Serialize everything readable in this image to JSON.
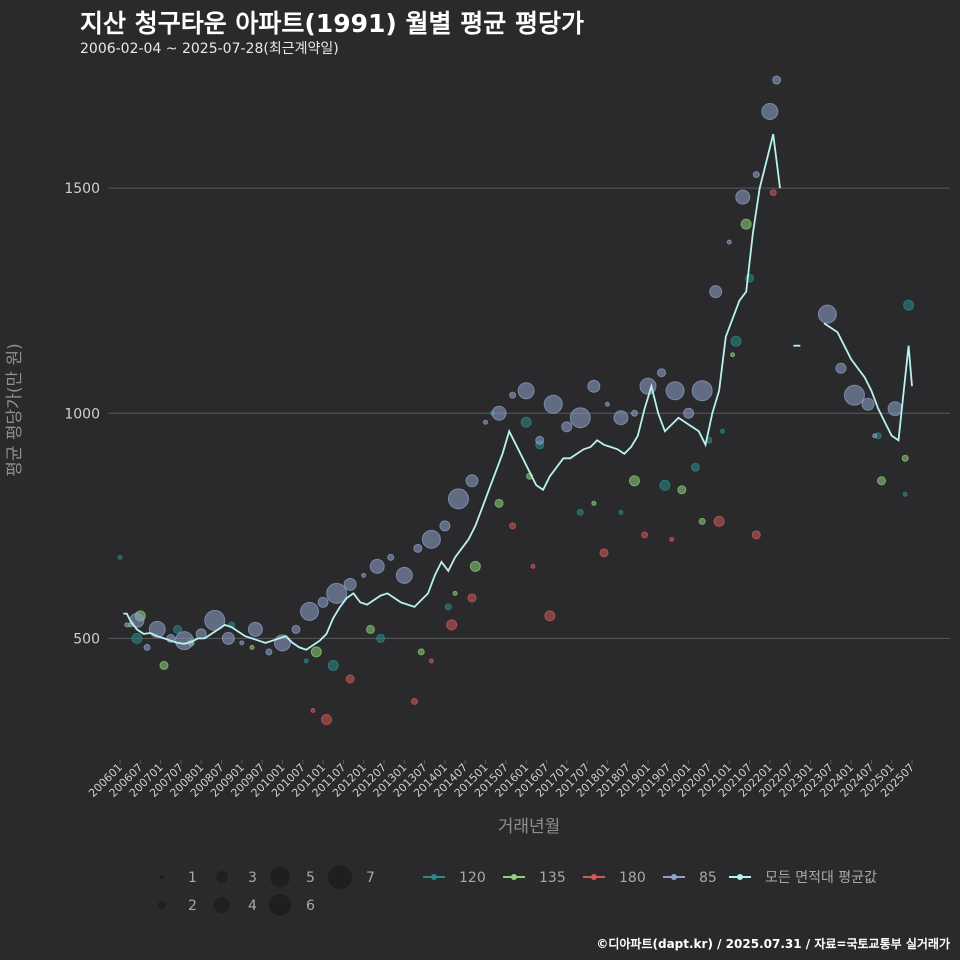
{
  "title": "지산 청구타운 아파트(1991) 월별 평균 평당가",
  "subtitle": "2006-02-04 ~ 2025-07-28(최근계약일)",
  "footer": "©디아파트(dapt.kr) / 2025.07.31 / 자료=국토교통부 실거래가",
  "colors": {
    "background": "#2a2a2c",
    "grid": "#5a5a5c",
    "series_120": "#2a8a8a",
    "series_135": "#8fd07a",
    "series_180": "#d05a5a",
    "series_85": "#8ea3cc",
    "avg_line": "#b8f2ee"
  },
  "chart_data": {
    "type": "line",
    "xlabel": "거래년월",
    "ylabel": "평균 평당가(만 원)",
    "y_ticks": [
      500,
      1000,
      1500
    ],
    "ylim": [
      230,
      1780
    ],
    "x_tick_labels": [
      "200601",
      "200607",
      "200701",
      "200707",
      "200801",
      "200807",
      "200901",
      "200907",
      "201001",
      "201007",
      "201101",
      "201107",
      "201201",
      "201207",
      "201301",
      "201307",
      "201401",
      "201407",
      "201501",
      "201507",
      "201601",
      "201607",
      "201701",
      "201707",
      "201801",
      "201807",
      "201901",
      "201907",
      "202001",
      "202007",
      "202101",
      "202107",
      "202201",
      "202207",
      "202301",
      "202307",
      "202401",
      "202407",
      "202501",
      "202507"
    ],
    "grid": "horizontal",
    "series": [
      {
        "name": "모든 면적대 평균값",
        "points": [
          [
            "2006-02",
            555
          ],
          [
            "2006-03",
            555
          ],
          [
            "2006-04",
            540
          ],
          [
            "2006-06",
            520
          ],
          [
            "2006-08",
            510
          ],
          [
            "2006-10",
            512
          ],
          [
            "2006-12",
            505
          ],
          [
            "2007-02",
            500
          ],
          [
            "2007-04",
            495
          ],
          [
            "2007-06",
            490
          ],
          [
            "2007-08",
            488
          ],
          [
            "2007-10",
            492
          ],
          [
            "2007-12",
            500
          ],
          [
            "2008-02",
            500
          ],
          [
            "2008-04",
            510
          ],
          [
            "2008-06",
            520
          ],
          [
            "2008-08",
            530
          ],
          [
            "2008-10",
            525
          ],
          [
            "2008-12",
            515
          ],
          [
            "2009-02",
            505
          ],
          [
            "2009-04",
            500
          ],
          [
            "2009-06",
            495
          ],
          [
            "2009-08",
            490
          ],
          [
            "2009-10",
            495
          ],
          [
            "2009-12",
            500
          ],
          [
            "2010-02",
            505
          ],
          [
            "2010-04",
            490
          ],
          [
            "2010-06",
            480
          ],
          [
            "2010-08",
            475
          ],
          [
            "2010-10",
            485
          ],
          [
            "2010-12",
            495
          ],
          [
            "2011-02",
            510
          ],
          [
            "2011-04",
            545
          ],
          [
            "2011-06",
            570
          ],
          [
            "2011-08",
            590
          ],
          [
            "2011-10",
            600
          ],
          [
            "2011-12",
            580
          ],
          [
            "2012-02",
            575
          ],
          [
            "2012-04",
            585
          ],
          [
            "2012-06",
            595
          ],
          [
            "2012-08",
            600
          ],
          [
            "2012-10",
            590
          ],
          [
            "2012-12",
            580
          ],
          [
            "2013-02",
            575
          ],
          [
            "2013-04",
            570
          ],
          [
            "2013-06",
            585
          ],
          [
            "2013-08",
            600
          ],
          [
            "2013-10",
            640
          ],
          [
            "2013-12",
            670
          ],
          [
            "2014-02",
            650
          ],
          [
            "2014-04",
            680
          ],
          [
            "2014-06",
            700
          ],
          [
            "2014-08",
            720
          ],
          [
            "2014-10",
            750
          ],
          [
            "2014-12",
            790
          ],
          [
            "2015-02",
            830
          ],
          [
            "2015-04",
            870
          ],
          [
            "2015-06",
            910
          ],
          [
            "2015-08",
            960
          ],
          [
            "2015-10",
            930
          ],
          [
            "2015-12",
            900
          ],
          [
            "2016-02",
            870
          ],
          [
            "2016-04",
            840
          ],
          [
            "2016-06",
            830
          ],
          [
            "2016-08",
            860
          ],
          [
            "2016-10",
            880
          ],
          [
            "2016-12",
            900
          ],
          [
            "2017-02",
            900
          ],
          [
            "2017-04",
            910
          ],
          [
            "2017-06",
            920
          ],
          [
            "2017-08",
            925
          ],
          [
            "2017-10",
            940
          ],
          [
            "2017-12",
            930
          ],
          [
            "2018-02",
            925
          ],
          [
            "2018-04",
            920
          ],
          [
            "2018-06",
            910
          ],
          [
            "2018-08",
            925
          ],
          [
            "2018-10",
            950
          ],
          [
            "2018-12",
            1010
          ],
          [
            "2019-02",
            1060
          ],
          [
            "2019-04",
            1000
          ],
          [
            "2019-06",
            960
          ],
          [
            "2019-08",
            975
          ],
          [
            "2019-10",
            990
          ],
          [
            "2019-12",
            980
          ],
          [
            "2020-02",
            970
          ],
          [
            "2020-04",
            960
          ],
          [
            "2020-06",
            930
          ],
          [
            "2020-08",
            1000
          ],
          [
            "2020-10",
            1050
          ],
          [
            "2020-12",
            1170
          ],
          [
            "2021-02",
            1210
          ],
          [
            "2021-04",
            1250
          ],
          [
            "2021-06",
            1270
          ],
          [
            "2021-08",
            1400
          ],
          [
            "2021-10",
            1500
          ],
          [
            "2021-12",
            1560
          ],
          [
            "2022-02",
            1620
          ],
          [
            "2022-04",
            1500
          ],
          [
            "2022-08",
            1150
          ],
          [
            "2022-10",
            1150
          ],
          [
            "2023-05",
            1200
          ],
          [
            "2023-07",
            1190
          ],
          [
            "2023-09",
            1180
          ],
          [
            "2023-11",
            1150
          ],
          [
            "2024-01",
            1120
          ],
          [
            "2024-03",
            1100
          ],
          [
            "2024-05",
            1080
          ],
          [
            "2024-07",
            1050
          ],
          [
            "2024-09",
            1010
          ],
          [
            "2024-11",
            980
          ],
          [
            "2025-01",
            950
          ],
          [
            "2025-03",
            940
          ],
          [
            "2025-05",
            1080
          ],
          [
            "2025-06",
            1150
          ],
          [
            "2025-07",
            1060
          ]
        ]
      }
    ],
    "scatter_series": [
      {
        "name": "120",
        "color_key": "series_120",
        "points": [
          [
            "2006-01",
            680
          ],
          [
            "2006-06",
            500
          ],
          [
            "2007-06",
            520
          ],
          [
            "2008-10",
            530
          ],
          [
            "2010-08",
            450
          ],
          [
            "2011-04",
            440
          ],
          [
            "2012-06",
            500
          ],
          [
            "2014-02",
            570
          ],
          [
            "2015-03",
            1000
          ],
          [
            "2016-01",
            980
          ],
          [
            "2016-05",
            930
          ],
          [
            "2017-05",
            780
          ],
          [
            "2018-05",
            780
          ],
          [
            "2019-06",
            840
          ],
          [
            "2020-03",
            880
          ],
          [
            "2020-07",
            940
          ],
          [
            "2020-11",
            960
          ],
          [
            "2021-03",
            1160
          ],
          [
            "2021-07",
            1300
          ],
          [
            "2024-09",
            950
          ],
          [
            "2025-05",
            820
          ],
          [
            "2025-06",
            1240
          ]
        ]
      },
      {
        "name": "135",
        "color_key": "series_135",
        "points": [
          [
            "2006-04",
            530
          ],
          [
            "2006-07",
            550
          ],
          [
            "2007-02",
            440
          ],
          [
            "2007-10",
            490
          ],
          [
            "2009-04",
            480
          ],
          [
            "2010-11",
            470
          ],
          [
            "2012-03",
            520
          ],
          [
            "2013-06",
            470
          ],
          [
            "2014-04",
            600
          ],
          [
            "2014-10",
            660
          ],
          [
            "2015-05",
            800
          ],
          [
            "2016-02",
            860
          ],
          [
            "2017-09",
            800
          ],
          [
            "2018-09",
            850
          ],
          [
            "2019-11",
            830
          ],
          [
            "2020-05",
            760
          ],
          [
            "2021-02",
            1130
          ],
          [
            "2021-06",
            1420
          ],
          [
            "2024-10",
            850
          ],
          [
            "2025-05",
            900
          ]
        ]
      },
      {
        "name": "180",
        "color_key": "series_180",
        "points": [
          [
            "2010-10",
            340
          ],
          [
            "2011-02",
            320
          ],
          [
            "2011-09",
            410
          ],
          [
            "2013-04",
            360
          ],
          [
            "2013-09",
            450
          ],
          [
            "2014-03",
            530
          ],
          [
            "2014-09",
            590
          ],
          [
            "2015-09",
            750
          ],
          [
            "2016-03",
            660
          ],
          [
            "2016-08",
            550
          ],
          [
            "2017-12",
            690
          ],
          [
            "2018-12",
            730
          ],
          [
            "2019-08",
            720
          ],
          [
            "2020-10",
            760
          ],
          [
            "2021-09",
            730
          ],
          [
            "2022-02",
            1490
          ]
        ]
      },
      {
        "name": "85",
        "color_key": "series_85",
        "points": [
          [
            "2006-03",
            530
          ],
          [
            "2006-06",
            540
          ],
          [
            "2006-09",
            480
          ],
          [
            "2006-12",
            520
          ],
          [
            "2007-04",
            500
          ],
          [
            "2007-08",
            495
          ],
          [
            "2008-01",
            510
          ],
          [
            "2008-05",
            540
          ],
          [
            "2008-09",
            500
          ],
          [
            "2009-01",
            490
          ],
          [
            "2009-05",
            520
          ],
          [
            "2009-09",
            470
          ],
          [
            "2010-01",
            490
          ],
          [
            "2010-05",
            520
          ],
          [
            "2010-09",
            560
          ],
          [
            "2011-01",
            580
          ],
          [
            "2011-05",
            600
          ],
          [
            "2011-09",
            620
          ],
          [
            "2012-01",
            640
          ],
          [
            "2012-05",
            660
          ],
          [
            "2012-09",
            680
          ],
          [
            "2013-01",
            640
          ],
          [
            "2013-05",
            700
          ],
          [
            "2013-09",
            720
          ],
          [
            "2014-01",
            750
          ],
          [
            "2014-05",
            810
          ],
          [
            "2014-09",
            850
          ],
          [
            "2015-01",
            980
          ],
          [
            "2015-05",
            1000
          ],
          [
            "2015-09",
            1040
          ],
          [
            "2016-01",
            1050
          ],
          [
            "2016-05",
            940
          ],
          [
            "2016-09",
            1020
          ],
          [
            "2017-01",
            970
          ],
          [
            "2017-05",
            990
          ],
          [
            "2017-09",
            1060
          ],
          [
            "2018-01",
            1020
          ],
          [
            "2018-05",
            990
          ],
          [
            "2018-09",
            1000
          ],
          [
            "2019-01",
            1060
          ],
          [
            "2019-05",
            1090
          ],
          [
            "2019-09",
            1050
          ],
          [
            "2020-01",
            1000
          ],
          [
            "2020-05",
            1050
          ],
          [
            "2020-09",
            1270
          ],
          [
            "2021-01",
            1380
          ],
          [
            "2021-05",
            1480
          ],
          [
            "2021-09",
            1530
          ],
          [
            "2022-01",
            1670
          ],
          [
            "2022-03",
            1740
          ],
          [
            "2023-06",
            1220
          ],
          [
            "2023-10",
            1100
          ],
          [
            "2024-02",
            1040
          ],
          [
            "2024-06",
            1020
          ],
          [
            "2024-08",
            950
          ],
          [
            "2025-02",
            1010
          ]
        ]
      }
    ],
    "size_legend": {
      "values": [
        "1",
        "2",
        "3",
        "4",
        "5",
        "6",
        "7"
      ]
    },
    "color_legend": {
      "items": [
        "120",
        "135",
        "180",
        "85",
        "모든 면적대 평균값"
      ]
    }
  }
}
